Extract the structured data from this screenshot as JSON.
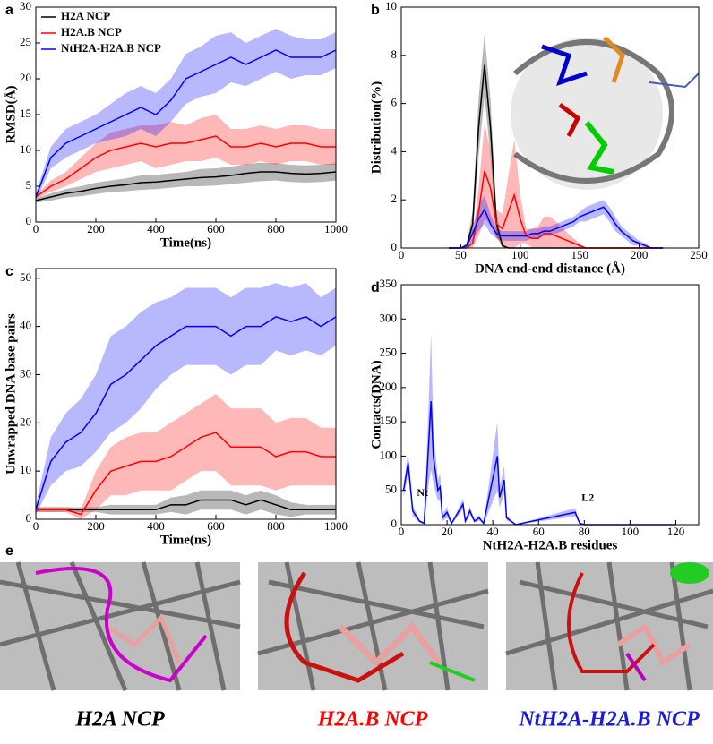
{
  "chart_data": [
    {
      "type": "line",
      "panel_label": "a",
      "xlabel": "Time(ns)",
      "ylabel": "RMSD(Å)",
      "x": [
        0,
        50,
        100,
        150,
        200,
        250,
        300,
        350,
        400,
        450,
        500,
        550,
        600,
        650,
        700,
        750,
        800,
        850,
        900,
        950,
        1000
      ],
      "xlim": [
        0,
        1000
      ],
      "xticks": [
        0,
        200,
        400,
        600,
        800,
        1000
      ],
      "ylim": [
        0,
        30
      ],
      "yticks": [
        0,
        5,
        10,
        15,
        20,
        25,
        30
      ],
      "legend": "upper left",
      "series": [
        {
          "name": "H2A NCP",
          "color": "#000000",
          "values": [
            3,
            3.5,
            4,
            4.3,
            4.7,
            5,
            5.2,
            5.5,
            5.6,
            5.8,
            6,
            6.2,
            6.3,
            6.5,
            6.8,
            7,
            7,
            6.8,
            6.7,
            6.8,
            7
          ],
          "error": [
            0.3,
            0.5,
            0.6,
            0.7,
            0.8,
            0.8,
            0.9,
            1,
            1,
            1,
            1,
            1.2,
            1.2,
            1.2,
            1.3,
            1.3,
            1.2,
            1.2,
            1.2,
            1.2,
            1.2
          ]
        },
        {
          "name": "H2A.B NCP",
          "color": "#ff0000",
          "values": [
            3.5,
            5,
            6,
            7.5,
            9,
            10,
            10.5,
            11,
            10.5,
            11,
            11,
            11.5,
            12,
            10.5,
            10.5,
            11,
            10.5,
            11,
            11,
            10.5,
            10.5
          ],
          "error": [
            0.3,
            0.8,
            1,
            1.5,
            2,
            2.5,
            2.5,
            2.5,
            3,
            3,
            2.5,
            3,
            3,
            2.5,
            2.5,
            2.5,
            2.5,
            2.5,
            2.5,
            2.5,
            2.5
          ]
        },
        {
          "name": "NtH2A-H2A.B NCP",
          "color": "#0000ff",
          "values": [
            3.5,
            9,
            11,
            12,
            13,
            14,
            15,
            16,
            15,
            17,
            20,
            21,
            22,
            23,
            22,
            23,
            24,
            23,
            23,
            23,
            24
          ],
          "error": [
            0.5,
            1.5,
            2,
            2,
            2,
            2.5,
            3,
            3,
            3,
            3,
            3.5,
            3.5,
            4,
            3.5,
            3,
            3,
            3,
            3,
            2.5,
            2.5,
            2.5
          ]
        }
      ]
    },
    {
      "type": "line",
      "panel_label": "b",
      "xlabel": "DNA end-end distance (Å)",
      "ylabel": "Distribution(%)",
      "x": [
        40,
        45,
        50,
        55,
        60,
        65,
        70,
        75,
        80,
        85,
        90,
        95,
        100,
        105,
        110,
        115,
        120,
        125,
        130,
        135,
        140,
        145,
        150,
        155,
        160,
        165,
        170,
        175,
        180,
        185,
        190,
        195,
        200,
        205,
        210,
        215,
        220
      ],
      "xlim": [
        0,
        250
      ],
      "xticks": [
        0,
        50,
        100,
        150,
        200,
        250
      ],
      "ylim": [
        0,
        10
      ],
      "yticks": [
        0,
        2,
        4,
        6,
        8,
        10
      ],
      "series": [
        {
          "name": "H2A NCP",
          "color": "#000000",
          "values": [
            0,
            0,
            0,
            0.1,
            1,
            5,
            7.6,
            5,
            1,
            0.1,
            0,
            0,
            0,
            0,
            0,
            0,
            0,
            0,
            0,
            0,
            0,
            0,
            0,
            0,
            0,
            0,
            0,
            0,
            0,
            0,
            0,
            0,
            0,
            0,
            0,
            0,
            0
          ],
          "error": [
            0,
            0,
            0,
            0.1,
            0.5,
            1.2,
            1.3,
            1.2,
            0.5,
            0.1,
            0,
            0,
            0,
            0,
            0,
            0,
            0,
            0,
            0,
            0,
            0,
            0,
            0,
            0,
            0,
            0,
            0,
            0,
            0,
            0,
            0,
            0,
            0,
            0,
            0,
            0,
            0
          ]
        },
        {
          "name": "H2A.B NCP",
          "color": "#ff0000",
          "values": [
            0,
            0,
            0,
            0,
            0.2,
            1.5,
            3.2,
            2.5,
            1,
            0.8,
            1.5,
            2.2,
            1.2,
            0.5,
            0.4,
            0.4,
            0.6,
            0.6,
            0.5,
            0.4,
            0.3,
            0.2,
            0.1,
            0,
            0,
            0,
            0,
            0,
            0,
            0,
            0,
            0,
            0,
            0,
            0,
            0,
            0
          ],
          "error": [
            0,
            0,
            0,
            0,
            0.2,
            1,
            2,
            1.5,
            0.6,
            0.6,
            1.5,
            2.3,
            1,
            0.3,
            0.4,
            0.5,
            0.7,
            0.7,
            0.6,
            0.5,
            0.3,
            0.2,
            0.1,
            0,
            0,
            0,
            0,
            0,
            0,
            0,
            0,
            0,
            0,
            0,
            0,
            0,
            0
          ]
        },
        {
          "name": "NtH2A-H2A.B NCP",
          "color": "#0000ff",
          "values": [
            0,
            0,
            0,
            0.1,
            0.6,
            1.2,
            1.6,
            1,
            0.6,
            0.5,
            0.5,
            0.5,
            0.5,
            0.5,
            0.6,
            0.6,
            0.7,
            0.7,
            0.8,
            0.9,
            1,
            1.1,
            1.3,
            1.4,
            1.5,
            1.6,
            1.7,
            1.4,
            1,
            0.7,
            0.5,
            0.3,
            0.2,
            0.1,
            0,
            0,
            0
          ],
          "error": [
            0,
            0,
            0,
            0.1,
            0.3,
            0.5,
            0.6,
            0.4,
            0.2,
            0.2,
            0.2,
            0.2,
            0.2,
            0.2,
            0.2,
            0.2,
            0.2,
            0.2,
            0.2,
            0.2,
            0.2,
            0.2,
            0.2,
            0.3,
            0.3,
            0.3,
            0.3,
            0.3,
            0.3,
            0.2,
            0.2,
            0.2,
            0.1,
            0.1,
            0,
            0,
            0
          ]
        }
      ]
    },
    {
      "type": "line",
      "panel_label": "c",
      "xlabel": "Time(ns)",
      "ylabel": "Unwrapped DNA base pairs",
      "x": [
        0,
        50,
        100,
        150,
        200,
        250,
        300,
        350,
        400,
        450,
        500,
        550,
        600,
        650,
        700,
        750,
        800,
        850,
        900,
        950,
        1000
      ],
      "xlim": [
        0,
        1000
      ],
      "xticks": [
        0,
        200,
        400,
        600,
        800,
        1000
      ],
      "ylim": [
        0,
        52
      ],
      "yticks": [
        0,
        10,
        20,
        30,
        40,
        50
      ],
      "series": [
        {
          "name": "H2A NCP",
          "color": "#000000",
          "values": [
            2,
            2,
            2,
            2,
            2,
            2,
            2,
            2,
            2,
            3,
            3,
            4,
            4,
            4,
            3,
            4,
            3,
            2,
            2,
            2,
            2
          ],
          "error": [
            0.5,
            0.5,
            0.5,
            0.5,
            0.5,
            1,
            1,
            1,
            1,
            1.5,
            2,
            2,
            2,
            2,
            2,
            2,
            2,
            1.5,
            1,
            1,
            1
          ]
        },
        {
          "name": "H2A.B NCP",
          "color": "#ff0000",
          "values": [
            2,
            2,
            2,
            1,
            6,
            10,
            11,
            12,
            12,
            13,
            15,
            17,
            18,
            15,
            15,
            15,
            13,
            14,
            14,
            13,
            13
          ],
          "error": [
            0.5,
            0.5,
            0.5,
            1,
            4,
            5,
            6,
            6,
            6,
            7,
            7,
            7,
            8,
            8,
            8,
            8,
            7,
            7,
            7,
            6,
            6
          ]
        },
        {
          "name": "NtH2A-H2A.B NCP",
          "color": "#0000ff",
          "values": [
            2,
            12,
            16,
            18,
            22,
            28,
            30,
            33,
            36,
            38,
            40,
            40,
            40,
            38,
            40,
            40,
            42,
            41,
            42,
            40,
            42
          ],
          "error": [
            1,
            5,
            6,
            7,
            8,
            10,
            10,
            10,
            9,
            8,
            8,
            8,
            8,
            8,
            8,
            8,
            7,
            7,
            7,
            6,
            6
          ]
        }
      ]
    },
    {
      "type": "line",
      "panel_label": "d",
      "xlabel": "NtH2A-H2A.B residues",
      "ylabel": "Contacts(DNA)",
      "x": [
        1,
        3,
        5,
        8,
        10,
        12,
        13,
        14,
        16,
        17,
        18,
        20,
        22,
        27,
        28,
        30,
        32,
        34,
        36,
        42,
        43,
        45,
        46,
        50,
        76,
        78,
        80,
        120
      ],
      "xlim": [
        0,
        130
      ],
      "xticks": [
        0,
        20,
        40,
        60,
        80,
        100,
        120
      ],
      "ylim": [
        0,
        350
      ],
      "yticks": [
        0,
        50,
        100,
        150,
        200,
        250,
        300,
        350
      ],
      "annotations": [
        "Nt",
        "L2"
      ],
      "series": [
        {
          "name": "NtH2A-H2A.B",
          "color": "#0000ff",
          "values": [
            50,
            90,
            20,
            5,
            2,
            120,
            180,
            100,
            50,
            55,
            10,
            18,
            2,
            30,
            5,
            20,
            5,
            10,
            2,
            100,
            40,
            65,
            10,
            0,
            18,
            2,
            0,
            0
          ],
          "error": [
            10,
            15,
            8,
            2,
            1,
            60,
            100,
            40,
            15,
            20,
            5,
            8,
            1,
            8,
            2,
            6,
            2,
            4,
            1,
            50,
            15,
            20,
            4,
            0,
            6,
            1,
            0,
            0
          ]
        }
      ]
    }
  ],
  "panel_e": {
    "label": "e",
    "captions": [
      "H2A NCP",
      "H2A.B NCP",
      "NtH2A-H2A.B NCP"
    ],
    "colors": [
      "#000000",
      "#ff0000",
      "#1a1adc"
    ]
  }
}
